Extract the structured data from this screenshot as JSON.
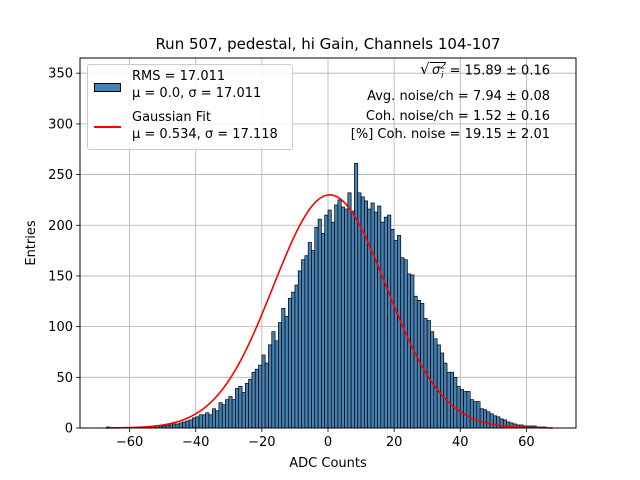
{
  "chart_data": {
    "type": "histogram",
    "title": "Run 507, pedestal, hi Gain, Channels 104-107",
    "xlabel": "ADC Counts",
    "ylabel": "Entries",
    "xlim": [
      -75,
      75
    ],
    "ylim": [
      0,
      365
    ],
    "xticks": [
      -60,
      -40,
      -20,
      0,
      20,
      40,
      60
    ],
    "yticks": [
      0,
      50,
      100,
      150,
      200,
      250,
      300,
      350
    ],
    "grid": true,
    "bin_width": 1,
    "bin_range": [
      -67,
      68
    ],
    "bar_color": "#4682b4",
    "edge_color": "#000000",
    "fit_color": "#ff0000",
    "counts": [
      1,
      0,
      0,
      0,
      0,
      0,
      0,
      0,
      0,
      0,
      0,
      1,
      1,
      1,
      1,
      2,
      2,
      2,
      3,
      3,
      4,
      4,
      5,
      6,
      7,
      8,
      10,
      11,
      13,
      13,
      15,
      13,
      19,
      17,
      25,
      23,
      28,
      31,
      28,
      39,
      41,
      35,
      44,
      48,
      55,
      58,
      62,
      72,
      64,
      82,
      95,
      86,
      104,
      118,
      110,
      128,
      134,
      141,
      155,
      166,
      170,
      183,
      175,
      198,
      206,
      192,
      210,
      215,
      203,
      220,
      225,
      218,
      216,
      232,
      214,
      261,
      232,
      228,
      224,
      216,
      222,
      213,
      219,
      203,
      208,
      210,
      196,
      185,
      190,
      168,
      166,
      152,
      151,
      130,
      126,
      123,
      108,
      106,
      95,
      88,
      82,
      74,
      64,
      55,
      55,
      50,
      41,
      38,
      36,
      36,
      28,
      26,
      26,
      19,
      18,
      16,
      14,
      12,
      11,
      9,
      8,
      6,
      5,
      4,
      3,
      3,
      2,
      2,
      2,
      2,
      1,
      1,
      1,
      0,
      0,
      0
    ],
    "fit": {
      "mu": 0.534,
      "sigma": 17.118,
      "amplitude": 230
    },
    "legend": {
      "position": "upper-left",
      "entries": [
        {
          "kind": "bar",
          "line1": "RMS = 17.011",
          "line2": "μ = 0.0, σ = 17.011"
        },
        {
          "kind": "line",
          "line1": "Gaussian Fit",
          "line2": "μ = 0.534, σ = 17.118"
        }
      ]
    },
    "annotations": {
      "sigma_label": "σ",
      "sigma_sub": "i",
      "sigma_sup": "2",
      "sigma_value": " = 15.89 ± 0.16",
      "avg_noise": "Avg. noise/ch = 7.94 ± 0.08",
      "coh_noise": "Coh. noise/ch = 1.52 ± 0.16",
      "coh_pct": "[%] Coh. noise = 19.15 ± 2.01"
    }
  }
}
